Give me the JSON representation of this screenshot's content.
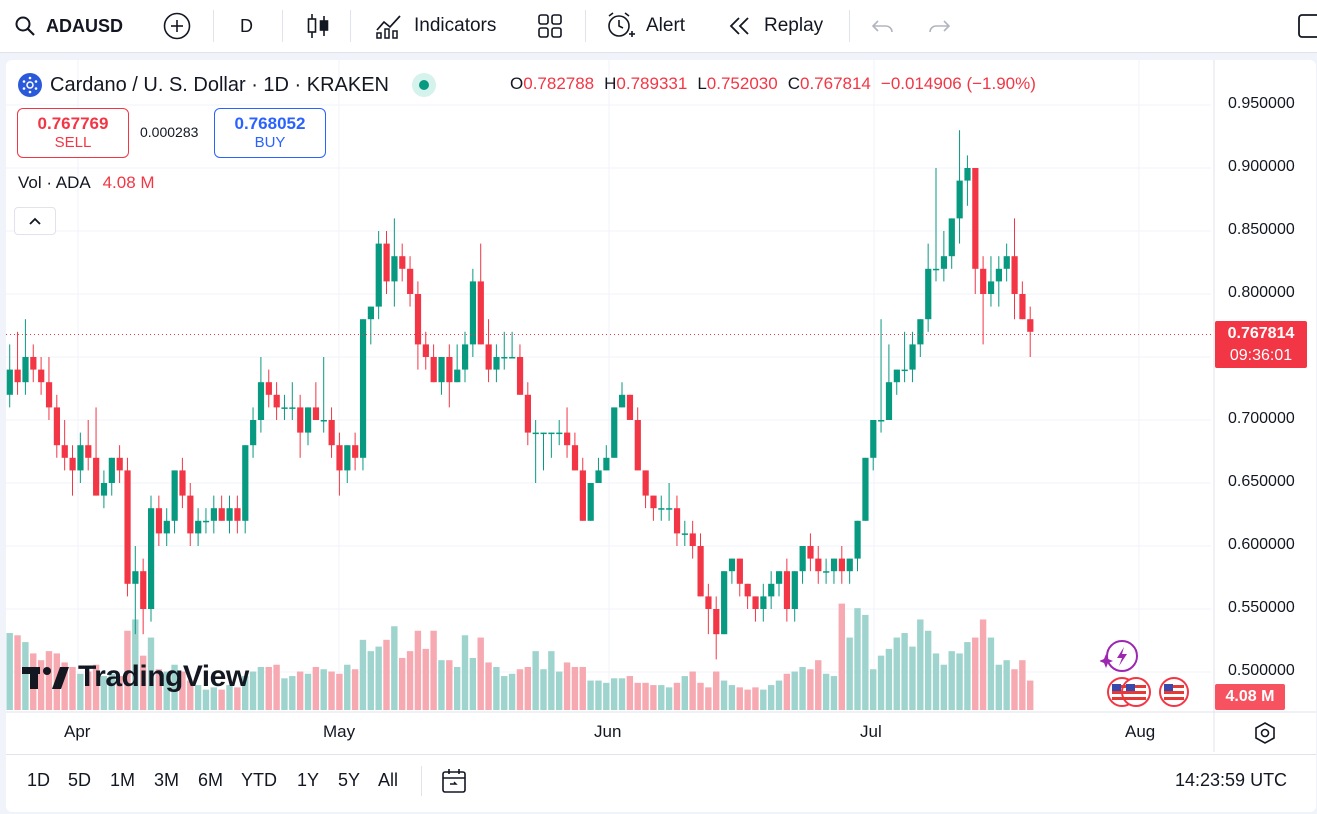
{
  "toolbar": {
    "symbol": "ADAUSD",
    "interval": "D",
    "indicators_label": "Indicators",
    "alert_label": "Alert",
    "replay_label": "Replay"
  },
  "legend": {
    "title": "Cardano / U. S. Dollar · 1D · KRAKEN",
    "o_key": "O",
    "o_val": "0.782788",
    "h_key": "H",
    "h_val": "0.789331",
    "l_key": "L",
    "l_val": "0.752030",
    "c_key": "C",
    "c_val": "0.767814",
    "change": "−0.014906 (−1.90%)"
  },
  "trade": {
    "sell_price": "0.767769",
    "sell_label": "SELL",
    "spread": "0.000283",
    "buy_price": "0.768052",
    "buy_label": "BUY"
  },
  "volume_legend": {
    "label": "Vol · ADA",
    "value": "4.08 M"
  },
  "price_label": {
    "price": "0.767814",
    "countdown": "09:36:01"
  },
  "volume_label": "4.08 M",
  "logo_text": "TradingView",
  "range_buttons": [
    "1D",
    "5D",
    "1M",
    "3M",
    "6M",
    "YTD",
    "1Y",
    "5Y",
    "All"
  ],
  "clock": "14:23:59 UTC",
  "colors": {
    "up": "#089981",
    "down": "#f23645",
    "up_vol": "#9ed4cd",
    "down_vol": "#f6a9b0"
  },
  "chart_data": {
    "type": "candlestick",
    "y_ticks": [
      "0.950000",
      "0.900000",
      "0.850000",
      "0.800000",
      "0.700000",
      "0.650000",
      "0.600000",
      "0.550000",
      "0.500000"
    ],
    "x_ticks": [
      "Apr",
      "May",
      "Jun",
      "Jul",
      "Aug"
    ],
    "last_price": 0.767814,
    "candles": [
      {
        "o": 0.72,
        "h": 0.76,
        "l": 0.71,
        "c": 0.74,
        "v": 0.34
      },
      {
        "o": 0.74,
        "h": 0.77,
        "l": 0.72,
        "c": 0.73,
        "v": 0.33
      },
      {
        "o": 0.73,
        "h": 0.78,
        "l": 0.72,
        "c": 0.75,
        "v": 0.3
      },
      {
        "o": 0.75,
        "h": 0.76,
        "l": 0.73,
        "c": 0.74,
        "v": 0.25
      },
      {
        "o": 0.74,
        "h": 0.75,
        "l": 0.72,
        "c": 0.73,
        "v": 0.22
      },
      {
        "o": 0.73,
        "h": 0.75,
        "l": 0.7,
        "c": 0.71,
        "v": 0.26
      },
      {
        "o": 0.71,
        "h": 0.72,
        "l": 0.67,
        "c": 0.68,
        "v": 0.25
      },
      {
        "o": 0.68,
        "h": 0.7,
        "l": 0.66,
        "c": 0.67,
        "v": 0.21
      },
      {
        "o": 0.67,
        "h": 0.68,
        "l": 0.64,
        "c": 0.66,
        "v": 0.19
      },
      {
        "o": 0.66,
        "h": 0.69,
        "l": 0.65,
        "c": 0.68,
        "v": 0.16
      },
      {
        "o": 0.68,
        "h": 0.7,
        "l": 0.66,
        "c": 0.67,
        "v": 0.17
      },
      {
        "o": 0.67,
        "h": 0.71,
        "l": 0.64,
        "c": 0.64,
        "v": 0.2
      },
      {
        "o": 0.64,
        "h": 0.66,
        "l": 0.63,
        "c": 0.65,
        "v": 0.15
      },
      {
        "o": 0.65,
        "h": 0.67,
        "l": 0.64,
        "c": 0.67,
        "v": 0.16
      },
      {
        "o": 0.67,
        "h": 0.68,
        "l": 0.65,
        "c": 0.66,
        "v": 0.15
      },
      {
        "o": 0.66,
        "h": 0.67,
        "l": 0.56,
        "c": 0.57,
        "v": 0.35
      },
      {
        "o": 0.57,
        "h": 0.6,
        "l": 0.53,
        "c": 0.58,
        "v": 0.4
      },
      {
        "o": 0.58,
        "h": 0.59,
        "l": 0.53,
        "c": 0.55,
        "v": 0.24
      },
      {
        "o": 0.55,
        "h": 0.64,
        "l": 0.54,
        "c": 0.63,
        "v": 0.32
      },
      {
        "o": 0.63,
        "h": 0.64,
        "l": 0.6,
        "c": 0.61,
        "v": 0.18
      },
      {
        "o": 0.61,
        "h": 0.63,
        "l": 0.6,
        "c": 0.62,
        "v": 0.17
      },
      {
        "o": 0.62,
        "h": 0.66,
        "l": 0.61,
        "c": 0.66,
        "v": 0.2
      },
      {
        "o": 0.66,
        "h": 0.67,
        "l": 0.63,
        "c": 0.64,
        "v": 0.17
      },
      {
        "o": 0.64,
        "h": 0.65,
        "l": 0.6,
        "c": 0.61,
        "v": 0.13
      },
      {
        "o": 0.61,
        "h": 0.63,
        "l": 0.6,
        "c": 0.62,
        "v": 0.11
      },
      {
        "o": 0.62,
        "h": 0.63,
        "l": 0.61,
        "c": 0.62,
        "v": 0.09
      },
      {
        "o": 0.62,
        "h": 0.64,
        "l": 0.61,
        "c": 0.63,
        "v": 0.1
      },
      {
        "o": 0.63,
        "h": 0.64,
        "l": 0.62,
        "c": 0.62,
        "v": 0.09
      },
      {
        "o": 0.62,
        "h": 0.64,
        "l": 0.61,
        "c": 0.63,
        "v": 0.11
      },
      {
        "o": 0.63,
        "h": 0.64,
        "l": 0.61,
        "c": 0.62,
        "v": 0.1
      },
      {
        "o": 0.62,
        "h": 0.68,
        "l": 0.61,
        "c": 0.68,
        "v": 0.15
      },
      {
        "o": 0.68,
        "h": 0.71,
        "l": 0.67,
        "c": 0.7,
        "v": 0.17
      },
      {
        "o": 0.7,
        "h": 0.75,
        "l": 0.69,
        "c": 0.73,
        "v": 0.19
      },
      {
        "o": 0.73,
        "h": 0.74,
        "l": 0.71,
        "c": 0.72,
        "v": 0.19
      },
      {
        "o": 0.72,
        "h": 0.73,
        "l": 0.7,
        "c": 0.71,
        "v": 0.2
      },
      {
        "o": 0.71,
        "h": 0.72,
        "l": 0.7,
        "c": 0.71,
        "v": 0.14
      },
      {
        "o": 0.71,
        "h": 0.73,
        "l": 0.7,
        "c": 0.71,
        "v": 0.15
      },
      {
        "o": 0.71,
        "h": 0.72,
        "l": 0.67,
        "c": 0.69,
        "v": 0.17
      },
      {
        "o": 0.69,
        "h": 0.71,
        "l": 0.68,
        "c": 0.71,
        "v": 0.16
      },
      {
        "o": 0.71,
        "h": 0.73,
        "l": 0.7,
        "c": 0.7,
        "v": 0.19
      },
      {
        "o": 0.7,
        "h": 0.75,
        "l": 0.69,
        "c": 0.7,
        "v": 0.18
      },
      {
        "o": 0.7,
        "h": 0.71,
        "l": 0.67,
        "c": 0.68,
        "v": 0.17
      },
      {
        "o": 0.68,
        "h": 0.69,
        "l": 0.64,
        "c": 0.66,
        "v": 0.16
      },
      {
        "o": 0.66,
        "h": 0.68,
        "l": 0.65,
        "c": 0.68,
        "v": 0.2
      },
      {
        "o": 0.68,
        "h": 0.69,
        "l": 0.66,
        "c": 0.67,
        "v": 0.18
      },
      {
        "o": 0.67,
        "h": 0.78,
        "l": 0.66,
        "c": 0.78,
        "v": 0.31
      },
      {
        "o": 0.78,
        "h": 0.79,
        "l": 0.76,
        "c": 0.79,
        "v": 0.26
      },
      {
        "o": 0.79,
        "h": 0.85,
        "l": 0.78,
        "c": 0.84,
        "v": 0.28
      },
      {
        "o": 0.84,
        "h": 0.85,
        "l": 0.8,
        "c": 0.81,
        "v": 0.31
      },
      {
        "o": 0.81,
        "h": 0.86,
        "l": 0.79,
        "c": 0.83,
        "v": 0.37
      },
      {
        "o": 0.83,
        "h": 0.84,
        "l": 0.81,
        "c": 0.82,
        "v": 0.23
      },
      {
        "o": 0.82,
        "h": 0.83,
        "l": 0.79,
        "c": 0.8,
        "v": 0.26
      },
      {
        "o": 0.8,
        "h": 0.81,
        "l": 0.74,
        "c": 0.76,
        "v": 0.35
      },
      {
        "o": 0.76,
        "h": 0.77,
        "l": 0.74,
        "c": 0.75,
        "v": 0.27
      },
      {
        "o": 0.75,
        "h": 0.76,
        "l": 0.73,
        "c": 0.73,
        "v": 0.35
      },
      {
        "o": 0.73,
        "h": 0.75,
        "l": 0.72,
        "c": 0.75,
        "v": 0.22
      },
      {
        "o": 0.75,
        "h": 0.76,
        "l": 0.71,
        "c": 0.73,
        "v": 0.22
      },
      {
        "o": 0.73,
        "h": 0.76,
        "l": 0.73,
        "c": 0.74,
        "v": 0.19
      },
      {
        "o": 0.74,
        "h": 0.77,
        "l": 0.73,
        "c": 0.76,
        "v": 0.33
      },
      {
        "o": 0.76,
        "h": 0.82,
        "l": 0.75,
        "c": 0.81,
        "v": 0.23
      },
      {
        "o": 0.81,
        "h": 0.84,
        "l": 0.76,
        "c": 0.76,
        "v": 0.32
      },
      {
        "o": 0.76,
        "h": 0.78,
        "l": 0.73,
        "c": 0.74,
        "v": 0.21
      },
      {
        "o": 0.74,
        "h": 0.76,
        "l": 0.73,
        "c": 0.75,
        "v": 0.19
      },
      {
        "o": 0.75,
        "h": 0.77,
        "l": 0.74,
        "c": 0.75,
        "v": 0.15
      },
      {
        "o": 0.75,
        "h": 0.77,
        "l": 0.75,
        "c": 0.75,
        "v": 0.16
      },
      {
        "o": 0.75,
        "h": 0.76,
        "l": 0.72,
        "c": 0.72,
        "v": 0.18
      },
      {
        "o": 0.72,
        "h": 0.73,
        "l": 0.68,
        "c": 0.69,
        "v": 0.19
      },
      {
        "o": 0.69,
        "h": 0.7,
        "l": 0.65,
        "c": 0.69,
        "v": 0.26
      },
      {
        "o": 0.69,
        "h": 0.69,
        "l": 0.66,
        "c": 0.69,
        "v": 0.18
      },
      {
        "o": 0.69,
        "h": 0.69,
        "l": 0.67,
        "c": 0.69,
        "v": 0.26
      },
      {
        "o": 0.69,
        "h": 0.7,
        "l": 0.68,
        "c": 0.69,
        "v": 0.17
      },
      {
        "o": 0.69,
        "h": 0.71,
        "l": 0.67,
        "c": 0.68,
        "v": 0.21
      },
      {
        "o": 0.68,
        "h": 0.69,
        "l": 0.66,
        "c": 0.66,
        "v": 0.19
      },
      {
        "o": 0.66,
        "h": 0.67,
        "l": 0.62,
        "c": 0.62,
        "v": 0.19
      },
      {
        "o": 0.62,
        "h": 0.65,
        "l": 0.62,
        "c": 0.65,
        "v": 0.13
      },
      {
        "o": 0.65,
        "h": 0.67,
        "l": 0.65,
        "c": 0.66,
        "v": 0.13
      },
      {
        "o": 0.66,
        "h": 0.68,
        "l": 0.66,
        "c": 0.67,
        "v": 0.12
      },
      {
        "o": 0.67,
        "h": 0.71,
        "l": 0.67,
        "c": 0.71,
        "v": 0.14
      },
      {
        "o": 0.71,
        "h": 0.73,
        "l": 0.71,
        "c": 0.72,
        "v": 0.14
      },
      {
        "o": 0.72,
        "h": 0.72,
        "l": 0.7,
        "c": 0.7,
        "v": 0.15
      },
      {
        "o": 0.7,
        "h": 0.71,
        "l": 0.66,
        "c": 0.66,
        "v": 0.12
      },
      {
        "o": 0.66,
        "h": 0.66,
        "l": 0.63,
        "c": 0.64,
        "v": 0.12
      },
      {
        "o": 0.64,
        "h": 0.64,
        "l": 0.62,
        "c": 0.63,
        "v": 0.11
      },
      {
        "o": 0.63,
        "h": 0.64,
        "l": 0.62,
        "c": 0.63,
        "v": 0.11
      },
      {
        "o": 0.63,
        "h": 0.65,
        "l": 0.62,
        "c": 0.63,
        "v": 0.1
      },
      {
        "o": 0.63,
        "h": 0.64,
        "l": 0.6,
        "c": 0.61,
        "v": 0.12
      },
      {
        "o": 0.61,
        "h": 0.62,
        "l": 0.6,
        "c": 0.61,
        "v": 0.15
      },
      {
        "o": 0.61,
        "h": 0.62,
        "l": 0.59,
        "c": 0.6,
        "v": 0.17
      },
      {
        "o": 0.6,
        "h": 0.61,
        "l": 0.56,
        "c": 0.56,
        "v": 0.12
      },
      {
        "o": 0.56,
        "h": 0.57,
        "l": 0.53,
        "c": 0.55,
        "v": 0.1
      },
      {
        "o": 0.55,
        "h": 0.56,
        "l": 0.51,
        "c": 0.53,
        "v": 0.17
      },
      {
        "o": 0.53,
        "h": 0.58,
        "l": 0.53,
        "c": 0.58,
        "v": 0.13
      },
      {
        "o": 0.58,
        "h": 0.59,
        "l": 0.57,
        "c": 0.59,
        "v": 0.11
      },
      {
        "o": 0.59,
        "h": 0.59,
        "l": 0.56,
        "c": 0.57,
        "v": 0.1
      },
      {
        "o": 0.57,
        "h": 0.57,
        "l": 0.55,
        "c": 0.56,
        "v": 0.09
      },
      {
        "o": 0.56,
        "h": 0.56,
        "l": 0.54,
        "c": 0.55,
        "v": 0.1
      },
      {
        "o": 0.55,
        "h": 0.57,
        "l": 0.54,
        "c": 0.56,
        "v": 0.09
      },
      {
        "o": 0.56,
        "h": 0.58,
        "l": 0.55,
        "c": 0.57,
        "v": 0.11
      },
      {
        "o": 0.57,
        "h": 0.58,
        "l": 0.56,
        "c": 0.58,
        "v": 0.13
      },
      {
        "o": 0.58,
        "h": 0.59,
        "l": 0.54,
        "c": 0.55,
        "v": 0.16
      },
      {
        "o": 0.55,
        "h": 0.58,
        "l": 0.54,
        "c": 0.58,
        "v": 0.17
      },
      {
        "o": 0.58,
        "h": 0.6,
        "l": 0.57,
        "c": 0.6,
        "v": 0.19
      },
      {
        "o": 0.6,
        "h": 0.61,
        "l": 0.58,
        "c": 0.59,
        "v": 0.18
      },
      {
        "o": 0.59,
        "h": 0.6,
        "l": 0.57,
        "c": 0.58,
        "v": 0.22
      },
      {
        "o": 0.58,
        "h": 0.59,
        "l": 0.57,
        "c": 0.58,
        "v": 0.16
      },
      {
        "o": 0.58,
        "h": 0.59,
        "l": 0.57,
        "c": 0.59,
        "v": 0.15
      },
      {
        "o": 0.59,
        "h": 0.6,
        "l": 0.57,
        "c": 0.58,
        "v": 0.47
      },
      {
        "o": 0.58,
        "h": 0.59,
        "l": 0.57,
        "c": 0.59,
        "v": 0.32
      },
      {
        "o": 0.59,
        "h": 0.62,
        "l": 0.58,
        "c": 0.62,
        "v": 0.45
      },
      {
        "o": 0.62,
        "h": 0.67,
        "l": 0.62,
        "c": 0.67,
        "v": 0.42
      },
      {
        "o": 0.67,
        "h": 0.7,
        "l": 0.66,
        "c": 0.7,
        "v": 0.18
      },
      {
        "o": 0.7,
        "h": 0.78,
        "l": 0.69,
        "c": 0.7,
        "v": 0.24
      },
      {
        "o": 0.7,
        "h": 0.76,
        "l": 0.7,
        "c": 0.73,
        "v": 0.27
      },
      {
        "o": 0.73,
        "h": 0.74,
        "l": 0.72,
        "c": 0.74,
        "v": 0.32
      },
      {
        "o": 0.74,
        "h": 0.77,
        "l": 0.73,
        "c": 0.74,
        "v": 0.34
      },
      {
        "o": 0.74,
        "h": 0.77,
        "l": 0.73,
        "c": 0.76,
        "v": 0.28
      },
      {
        "o": 0.76,
        "h": 0.78,
        "l": 0.75,
        "c": 0.78,
        "v": 0.4
      },
      {
        "o": 0.78,
        "h": 0.84,
        "l": 0.77,
        "c": 0.82,
        "v": 0.35
      },
      {
        "o": 0.82,
        "h": 0.9,
        "l": 0.81,
        "c": 0.82,
        "v": 0.25
      },
      {
        "o": 0.82,
        "h": 0.85,
        "l": 0.81,
        "c": 0.83,
        "v": 0.2
      },
      {
        "o": 0.83,
        "h": 0.86,
        "l": 0.82,
        "c": 0.86,
        "v": 0.26
      },
      {
        "o": 0.86,
        "h": 0.93,
        "l": 0.84,
        "c": 0.89,
        "v": 0.25
      },
      {
        "o": 0.89,
        "h": 0.91,
        "l": 0.87,
        "c": 0.9,
        "v": 0.3
      },
      {
        "o": 0.9,
        "h": 0.9,
        "l": 0.8,
        "c": 0.82,
        "v": 0.32
      },
      {
        "o": 0.82,
        "h": 0.83,
        "l": 0.76,
        "c": 0.8,
        "v": 0.4
      },
      {
        "o": 0.8,
        "h": 0.83,
        "l": 0.79,
        "c": 0.81,
        "v": 0.32
      },
      {
        "o": 0.81,
        "h": 0.83,
        "l": 0.79,
        "c": 0.82,
        "v": 0.2
      },
      {
        "o": 0.82,
        "h": 0.84,
        "l": 0.81,
        "c": 0.83,
        "v": 0.22
      },
      {
        "o": 0.83,
        "h": 0.86,
        "l": 0.78,
        "c": 0.8,
        "v": 0.18
      },
      {
        "o": 0.8,
        "h": 0.81,
        "l": 0.78,
        "c": 0.78,
        "v": 0.22
      },
      {
        "o": 0.78,
        "h": 0.79,
        "l": 0.75,
        "c": 0.77,
        "v": 0.13
      }
    ]
  }
}
